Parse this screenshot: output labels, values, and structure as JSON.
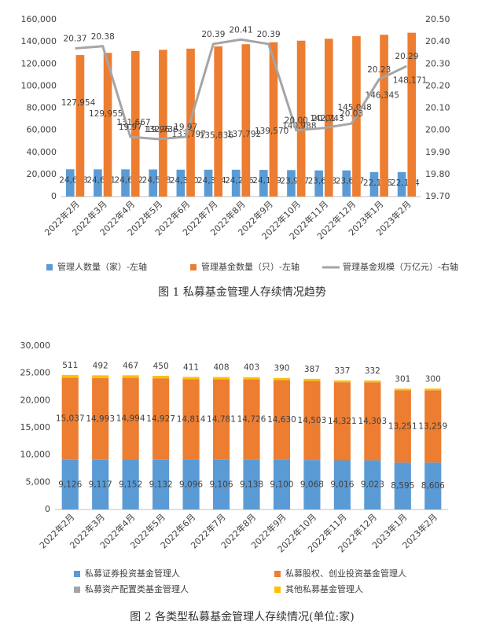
{
  "chart_data": [
    {
      "type": "bar",
      "title": "图 1 私募基金管理人存续情况趋势",
      "categories": [
        "2022年2月",
        "2022年3月",
        "2022年4月",
        "2022年5月",
        "2022年6月",
        "2022年7月",
        "2022年8月",
        "2022年9月",
        "2022年10月",
        "2022年11月",
        "2022年12月",
        "2023年1月",
        "2023年2月"
      ],
      "series": [
        {
          "name": "管理人数量（家）-左轴",
          "color": "#5b9bd5",
          "values": [
            24683,
            24611,
            24622,
            24518,
            24330,
            24304,
            24276,
            24129,
            23967,
            23683,
            23667,
            22156,
            22174
          ],
          "value_labels": [
            "24,683",
            "24,611",
            "24,622",
            "24,518",
            "24,330",
            "24,304",
            "24,276",
            "24,129",
            "23,967",
            "23,683",
            "23,667",
            "22,156",
            "22,174"
          ]
        },
        {
          "name": "管理基金数量（只）-左轴",
          "color": "#ed7d31",
          "values": [
            127954,
            129955,
            131667,
            132736,
            133797,
            135836,
            137792,
            139570,
            140988,
            142743,
            145048,
            146345,
            148171
          ],
          "value_labels": [
            "127,954",
            "129,955",
            "131,667",
            "132,736",
            "133,797",
            "135,836",
            "137,792",
            "139,570",
            "140,988",
            "142,743",
            "145,048",
            "146,345",
            "148,171"
          ]
        },
        {
          "name": "管理基金规模（万亿元）-右轴",
          "color": "#a5a5a5",
          "kind": "line",
          "axis": "y2",
          "values": [
            20.37,
            20.38,
            19.97,
            19.96,
            19.97,
            20.39,
            20.41,
            20.39,
            20.0,
            20.01,
            20.03,
            20.23,
            20.29
          ],
          "value_labels": [
            "20.37",
            "20.38",
            "19.97",
            "19.96",
            "19.97",
            "20.39",
            "20.41",
            "20.39",
            "20.00",
            "20.01",
            "20.03",
            "20.23",
            "20.29"
          ]
        }
      ],
      "ylim": [
        0,
        160000
      ],
      "yticks": [
        0,
        {
          "value": 20000,
          "label": "20,000"
        },
        {
          "value": 40000,
          "label": "40,000"
        },
        {
          "value": 60000,
          "label": "60,000"
        },
        {
          "value": 80000,
          "label": "80,000"
        },
        {
          "value": 100000,
          "label": "100,000"
        },
        {
          "value": 120000,
          "label": "120,000"
        },
        {
          "value": 140000,
          "label": "140,000"
        },
        {
          "value": 160000,
          "label": "160,000"
        }
      ],
      "y2lim": [
        19.7,
        20.5
      ],
      "y2ticks": [
        {
          "value": 19.7,
          "label": "19.70"
        },
        {
          "value": 19.8,
          "label": "19.80"
        },
        {
          "value": 19.9,
          "label": "19.90"
        },
        {
          "value": 20.0,
          "label": "20.00"
        },
        {
          "value": 20.1,
          "label": "20.10"
        },
        {
          "value": 20.2,
          "label": "20.20"
        },
        {
          "value": 20.3,
          "label": "20.30"
        },
        {
          "value": 20.4,
          "label": "20.40"
        },
        {
          "value": 20.5,
          "label": "20.50"
        }
      ],
      "grid": false,
      "legend": "bottom"
    },
    {
      "type": "stacked_bar",
      "title": "图 2 各类型私募基金管理人存续情况(单位:家)",
      "categories": [
        "2022年2月",
        "2022年3月",
        "2022年4月",
        "2022年5月",
        "2022年6月",
        "2022年7月",
        "2022年8月",
        "2022年9月",
        "2022年10月",
        "2022年11月",
        "2022年12月",
        "2023年1月",
        "2023年2月"
      ],
      "series": [
        {
          "name": "私募证券投资基金管理人",
          "color": "#5b9bd5",
          "values": [
            9126,
            9117,
            9152,
            9132,
            9096,
            9106,
            9138,
            9100,
            9068,
            9016,
            9023,
            8595,
            8606
          ],
          "value_labels": [
            "9,126",
            "9,117",
            "9,152",
            "9,132",
            "9,096",
            "9,106",
            "9,138",
            "9,100",
            "9,068",
            "9,016",
            "9,023",
            "8,595",
            "8,606"
          ]
        },
        {
          "name": "私募股权、创业投资基金管理人",
          "color": "#ed7d31",
          "values": [
            15037,
            14993,
            14994,
            14927,
            14814,
            14781,
            14726,
            14630,
            14503,
            14321,
            14303,
            13251,
            13259
          ],
          "value_labels": [
            "15,037",
            "14,993",
            "14,994",
            "14,927",
            "14,814",
            "14,781",
            "14,726",
            "14,630",
            "14,503",
            "14,321",
            "14,303",
            "13,251",
            "13,259"
          ]
        },
        {
          "name": "私募资产配置类基金管理人",
          "color": "#a5a5a5",
          "values": [
            9,
            9,
            9,
            9,
            9,
            9,
            9,
            9,
            9,
            9,
            9,
            9,
            9
          ]
        },
        {
          "name": "其他私募基金管理人",
          "color": "#ffc000",
          "values": [
            511,
            492,
            467,
            450,
            411,
            408,
            403,
            390,
            387,
            337,
            332,
            301,
            300
          ]
        }
      ],
      "ylim": [
        0,
        30000
      ],
      "yticks": [
        0,
        {
          "value": 5000,
          "label": "5,000"
        },
        {
          "value": 10000,
          "label": "10,000"
        },
        {
          "value": 15000,
          "label": "15,000"
        },
        {
          "value": 20000,
          "label": "20,000"
        },
        {
          "value": 25000,
          "label": "25,000"
        },
        {
          "value": 30000,
          "label": "30,000"
        }
      ],
      "grid": false,
      "legend": "bottom"
    }
  ]
}
